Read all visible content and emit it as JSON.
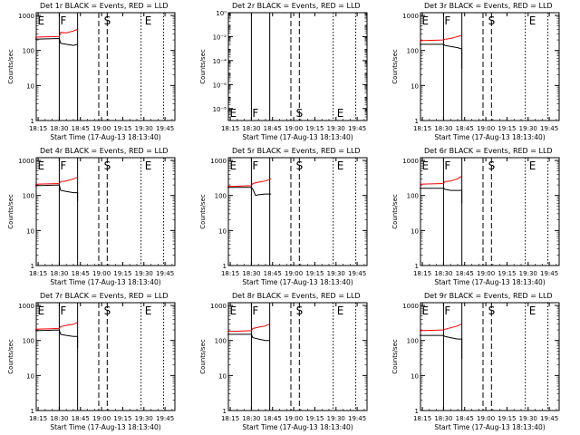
{
  "colors": {
    "events": "#000000",
    "lld": "#ff0000",
    "background": "#ffffff"
  },
  "chart_data": [
    {
      "type": "line",
      "title": "Det 1r BLACK = Events, RED = LLD",
      "xlabel": "Start Time (17-Aug-13 18:13:40)",
      "ylabel": "Counts/sec",
      "x_ticks": [
        "18:15",
        "18:30",
        "18:45",
        "19:00",
        "19:15",
        "19:30",
        "19:45"
      ],
      "y_ticks": [
        "1",
        "10",
        "100",
        "1000"
      ],
      "yscale": "log",
      "ylim": [
        1,
        1200
      ],
      "markers": [
        {
          "label": "E",
          "t": "18:14"
        },
        {
          "label": "F",
          "t": "18:30"
        },
        {
          "label": "S",
          "t": "19:01"
        },
        {
          "label": "E",
          "t": "19:30"
        }
      ],
      "vlines": [
        {
          "t": "18:30",
          "style": "solid"
        },
        {
          "t": "18:43",
          "style": "solid"
        },
        {
          "t": "18:58",
          "style": "dashed"
        },
        {
          "t": "19:04",
          "style": "dashed"
        },
        {
          "t": "19:28",
          "style": "dotted"
        },
        {
          "t": "19:44",
          "style": "dotted"
        }
      ],
      "series": [
        {
          "name": "LLD",
          "color": "red",
          "x": [
            "18:13",
            "18:30",
            "18:31",
            "18:35",
            "18:40",
            "18:43"
          ],
          "values": [
            240,
            250,
            330,
            320,
            360,
            400
          ]
        },
        {
          "name": "Events",
          "color": "black",
          "x": [
            "18:13",
            "18:30",
            "18:31",
            "18:35",
            "18:40",
            "18:43"
          ],
          "values": [
            210,
            220,
            160,
            150,
            140,
            150
          ]
        }
      ]
    },
    {
      "type": "line",
      "title": "Det 2r BLACK = Events, RED = LLD",
      "xlabel": "Start Time (17-Aug-13 18:13:40)",
      "ylabel": "Counts/sec",
      "x_ticks": [
        "18:15",
        "18:30",
        "18:45",
        "19:00",
        "19:15",
        "19:30",
        "19:45"
      ],
      "y_ticks": [
        "10⁻⁸",
        "10⁻⁶",
        "10⁻⁴",
        "10⁻²",
        "10⁰"
      ],
      "yscale": "log",
      "ylim": [
        1e-09,
        1
      ],
      "markers": [
        {
          "label": "E",
          "t": "18:14"
        },
        {
          "label": "F",
          "t": "18:30"
        },
        {
          "label": "S",
          "t": "19:01"
        },
        {
          "label": "E",
          "t": "19:30"
        }
      ],
      "marker_position": "bottom",
      "vlines": [
        {
          "t": "18:30",
          "style": "solid"
        },
        {
          "t": "18:43",
          "style": "solid"
        },
        {
          "t": "18:58",
          "style": "dashed"
        },
        {
          "t": "19:04",
          "style": "dashed"
        },
        {
          "t": "19:28",
          "style": "dotted"
        },
        {
          "t": "19:44",
          "style": "dotted"
        }
      ],
      "series": []
    },
    {
      "type": "line",
      "title": "Det 3r BLACK = Events, RED = LLD",
      "xlabel": "Start Time (17-Aug-13 18:13:40)",
      "ylabel": "Counts/sec",
      "x_ticks": [
        "18:15",
        "18:30",
        "18:45",
        "19:00",
        "19:15",
        "19:30",
        "19:45"
      ],
      "y_ticks": [
        "1",
        "10",
        "100",
        "1000"
      ],
      "yscale": "log",
      "ylim": [
        1,
        1200
      ],
      "markers": [
        {
          "label": "E",
          "t": "18:14"
        },
        {
          "label": "F",
          "t": "18:30"
        },
        {
          "label": "S",
          "t": "19:01"
        },
        {
          "label": "E",
          "t": "19:30"
        }
      ],
      "vlines": [
        {
          "t": "18:30",
          "style": "solid"
        },
        {
          "t": "18:43",
          "style": "solid"
        },
        {
          "t": "18:58",
          "style": "dashed"
        },
        {
          "t": "19:04",
          "style": "dashed"
        },
        {
          "t": "19:28",
          "style": "dotted"
        },
        {
          "t": "19:44",
          "style": "dotted"
        }
      ],
      "series": [
        {
          "name": "LLD",
          "color": "red",
          "x": [
            "18:13",
            "18:30",
            "18:31",
            "18:35",
            "18:40",
            "18:43"
          ],
          "values": [
            190,
            200,
            210,
            220,
            250,
            270
          ]
        },
        {
          "name": "Events",
          "color": "black",
          "x": [
            "18:13",
            "18:30",
            "18:31",
            "18:35",
            "18:40",
            "18:43",
            "18:43"
          ],
          "values": [
            150,
            150,
            140,
            130,
            120,
            110,
            30
          ]
        }
      ]
    },
    {
      "type": "line",
      "title": "Det 4r BLACK = Events, RED = LLD",
      "xlabel": "Start Time (17-Aug-13 18:13:40)",
      "ylabel": "Counts/sec",
      "x_ticks": [
        "18:15",
        "18:30",
        "18:45",
        "19:00",
        "19:15",
        "19:30",
        "19:45"
      ],
      "y_ticks": [
        "1",
        "10",
        "100",
        "1000"
      ],
      "yscale": "log",
      "ylim": [
        1,
        1200
      ],
      "markers": [
        {
          "label": "E",
          "t": "18:14"
        },
        {
          "label": "F",
          "t": "18:30"
        },
        {
          "label": "S",
          "t": "19:01"
        },
        {
          "label": "E",
          "t": "19:30"
        }
      ],
      "vlines": [
        {
          "t": "18:30",
          "style": "solid"
        },
        {
          "t": "18:43",
          "style": "solid"
        },
        {
          "t": "18:58",
          "style": "dashed"
        },
        {
          "t": "19:04",
          "style": "dashed"
        },
        {
          "t": "19:28",
          "style": "dotted"
        },
        {
          "t": "19:44",
          "style": "dotted"
        }
      ],
      "series": [
        {
          "name": "LLD",
          "color": "red",
          "x": [
            "18:13",
            "18:30",
            "18:31",
            "18:35",
            "18:40",
            "18:43"
          ],
          "values": [
            210,
            220,
            250,
            260,
            300,
            330
          ]
        },
        {
          "name": "Events",
          "color": "black",
          "x": [
            "18:13",
            "18:30",
            "18:31",
            "18:35",
            "18:40",
            "18:43",
            "18:43"
          ],
          "values": [
            190,
            200,
            140,
            130,
            120,
            120,
            70
          ]
        }
      ]
    },
    {
      "type": "line",
      "title": "Det 5r BLACK = Events, RED = LLD",
      "xlabel": "Start Time (17-Aug-13 18:13:40)",
      "ylabel": "Counts/sec",
      "x_ticks": [
        "18:15",
        "18:30",
        "18:45",
        "19:00",
        "19:15",
        "19:30",
        "19:45"
      ],
      "y_ticks": [
        "1",
        "10",
        "100",
        "1000"
      ],
      "yscale": "log",
      "ylim": [
        1,
        1200
      ],
      "markers": [
        {
          "label": "E",
          "t": "18:14"
        },
        {
          "label": "F",
          "t": "18:30"
        },
        {
          "label": "S",
          "t": "19:01"
        },
        {
          "label": "E",
          "t": "19:30"
        }
      ],
      "vlines": [
        {
          "t": "18:30",
          "style": "solid"
        },
        {
          "t": "18:43",
          "style": "solid"
        },
        {
          "t": "18:58",
          "style": "dashed"
        },
        {
          "t": "19:04",
          "style": "dashed"
        },
        {
          "t": "19:28",
          "style": "dotted"
        },
        {
          "t": "19:44",
          "style": "dotted"
        }
      ],
      "series": [
        {
          "name": "LLD",
          "color": "red",
          "x": [
            "18:13",
            "18:30",
            "18:31",
            "18:35",
            "18:40",
            "18:44"
          ],
          "values": [
            180,
            190,
            220,
            240,
            260,
            300
          ]
        },
        {
          "name": "Events",
          "color": "black",
          "x": [
            "18:13",
            "18:30",
            "18:31",
            "18:33",
            "18:35",
            "18:40",
            "18:44"
          ],
          "values": [
            170,
            170,
            150,
            100,
            105,
            110,
            110
          ]
        }
      ]
    },
    {
      "type": "line",
      "title": "Det 6r BLACK = Events, RED = LLD",
      "xlabel": "Start Time (17-Aug-13 18:13:40)",
      "ylabel": "Counts/sec",
      "x_ticks": [
        "18:15",
        "18:30",
        "18:45",
        "19:00",
        "19:15",
        "19:30",
        "19:45"
      ],
      "y_ticks": [
        "1",
        "10",
        "100",
        "1000"
      ],
      "yscale": "log",
      "ylim": [
        1,
        1200
      ],
      "markers": [
        {
          "label": "E",
          "t": "18:14"
        },
        {
          "label": "F",
          "t": "18:30"
        },
        {
          "label": "S",
          "t": "19:01"
        },
        {
          "label": "E",
          "t": "19:30"
        }
      ],
      "vlines": [
        {
          "t": "18:30",
          "style": "solid"
        },
        {
          "t": "18:43",
          "style": "solid"
        },
        {
          "t": "18:58",
          "style": "dashed"
        },
        {
          "t": "19:04",
          "style": "dashed"
        },
        {
          "t": "19:28",
          "style": "dotted"
        },
        {
          "t": "19:44",
          "style": "dotted"
        }
      ],
      "series": [
        {
          "name": "LLD",
          "color": "red",
          "x": [
            "18:13",
            "18:30",
            "18:31",
            "18:35",
            "18:40",
            "18:43"
          ],
          "values": [
            210,
            220,
            250,
            260,
            300,
            360
          ]
        },
        {
          "name": "Events",
          "color": "black",
          "x": [
            "18:13",
            "18:30",
            "18:31",
            "18:35",
            "18:40",
            "18:43",
            "18:43"
          ],
          "values": [
            160,
            160,
            150,
            140,
            140,
            140,
            60
          ]
        }
      ]
    },
    {
      "type": "line",
      "title": "Det 7r BLACK = Events, RED = LLD",
      "xlabel": "Start Time (17-Aug-13 18:13:40)",
      "ylabel": "Counts/sec",
      "x_ticks": [
        "18:15",
        "18:30",
        "18:45",
        "19:00",
        "19:15",
        "19:30",
        "19:45"
      ],
      "y_ticks": [
        "1",
        "10",
        "100",
        "1000"
      ],
      "yscale": "log",
      "ylim": [
        1,
        1200
      ],
      "markers": [
        {
          "label": "E",
          "t": "18:14"
        },
        {
          "label": "F",
          "t": "18:30"
        },
        {
          "label": "S",
          "t": "19:01"
        },
        {
          "label": "E",
          "t": "19:30"
        }
      ],
      "vlines": [
        {
          "t": "18:30",
          "style": "solid"
        },
        {
          "t": "18:43",
          "style": "solid"
        },
        {
          "t": "18:58",
          "style": "dashed"
        },
        {
          "t": "19:04",
          "style": "dashed"
        },
        {
          "t": "19:28",
          "style": "dotted"
        },
        {
          "t": "19:44",
          "style": "dotted"
        }
      ],
      "series": [
        {
          "name": "LLD",
          "color": "red",
          "x": [
            "18:13",
            "18:30",
            "18:31",
            "18:35",
            "18:40",
            "18:43"
          ],
          "values": [
            210,
            220,
            250,
            270,
            290,
            330
          ]
        },
        {
          "name": "Events",
          "color": "black",
          "x": [
            "18:13",
            "18:30",
            "18:31",
            "18:35",
            "18:40",
            "18:43",
            "18:43"
          ],
          "values": [
            190,
            200,
            150,
            140,
            130,
            130,
            60
          ]
        }
      ]
    },
    {
      "type": "line",
      "title": "Det 8r BLACK = Events, RED = LLD",
      "xlabel": "Start Time (17-Aug-13 18:13:40)",
      "ylabel": "Counts/sec",
      "x_ticks": [
        "18:15",
        "18:30",
        "18:45",
        "19:00",
        "19:15",
        "19:30",
        "19:45"
      ],
      "y_ticks": [
        "1",
        "10",
        "100",
        "1000"
      ],
      "yscale": "log",
      "ylim": [
        1,
        1200
      ],
      "markers": [
        {
          "label": "E",
          "t": "18:14"
        },
        {
          "label": "F",
          "t": "18:30"
        },
        {
          "label": "S",
          "t": "19:01"
        },
        {
          "label": "E",
          "t": "19:30"
        }
      ],
      "vlines": [
        {
          "t": "18:30",
          "style": "solid"
        },
        {
          "t": "18:43",
          "style": "solid"
        },
        {
          "t": "18:58",
          "style": "dashed"
        },
        {
          "t": "19:04",
          "style": "dashed"
        },
        {
          "t": "19:28",
          "style": "dotted"
        },
        {
          "t": "19:44",
          "style": "dotted"
        }
      ],
      "series": [
        {
          "name": "LLD",
          "color": "red",
          "x": [
            "18:13",
            "18:30",
            "18:31",
            "18:35",
            "18:40",
            "18:43"
          ],
          "values": [
            180,
            190,
            220,
            240,
            260,
            300
          ]
        },
        {
          "name": "Events",
          "color": "black",
          "x": [
            "18:13",
            "18:30",
            "18:31",
            "18:35",
            "18:40",
            "18:43"
          ],
          "values": [
            150,
            150,
            120,
            110,
            100,
            100
          ]
        }
      ]
    },
    {
      "type": "line",
      "title": "Det 9r BLACK = Events, RED = LLD",
      "xlabel": "Start Time (17-Aug-13 18:13:40)",
      "ylabel": "Counts/sec",
      "x_ticks": [
        "18:15",
        "18:30",
        "18:45",
        "19:00",
        "19:15",
        "19:30",
        "19:45"
      ],
      "y_ticks": [
        "1",
        "10",
        "100",
        "1000"
      ],
      "yscale": "log",
      "ylim": [
        1,
        1200
      ],
      "markers": [
        {
          "label": "E",
          "t": "18:14"
        },
        {
          "label": "F",
          "t": "18:30"
        },
        {
          "label": "S",
          "t": "19:01"
        },
        {
          "label": "E",
          "t": "19:30"
        }
      ],
      "vlines": [
        {
          "t": "18:30",
          "style": "solid"
        },
        {
          "t": "18:43",
          "style": "solid"
        },
        {
          "t": "18:58",
          "style": "dashed"
        },
        {
          "t": "19:04",
          "style": "dashed"
        },
        {
          "t": "19:28",
          "style": "dotted"
        },
        {
          "t": "19:44",
          "style": "dotted"
        }
      ],
      "series": [
        {
          "name": "LLD",
          "color": "red",
          "x": [
            "18:13",
            "18:30",
            "18:31",
            "18:35",
            "18:40",
            "18:43"
          ],
          "values": [
            190,
            200,
            210,
            230,
            260,
            300
          ]
        },
        {
          "name": "Events",
          "color": "black",
          "x": [
            "18:13",
            "18:30",
            "18:31",
            "18:35",
            "18:40",
            "18:43",
            "18:43"
          ],
          "values": [
            140,
            140,
            130,
            120,
            110,
            110,
            30
          ]
        }
      ]
    }
  ]
}
